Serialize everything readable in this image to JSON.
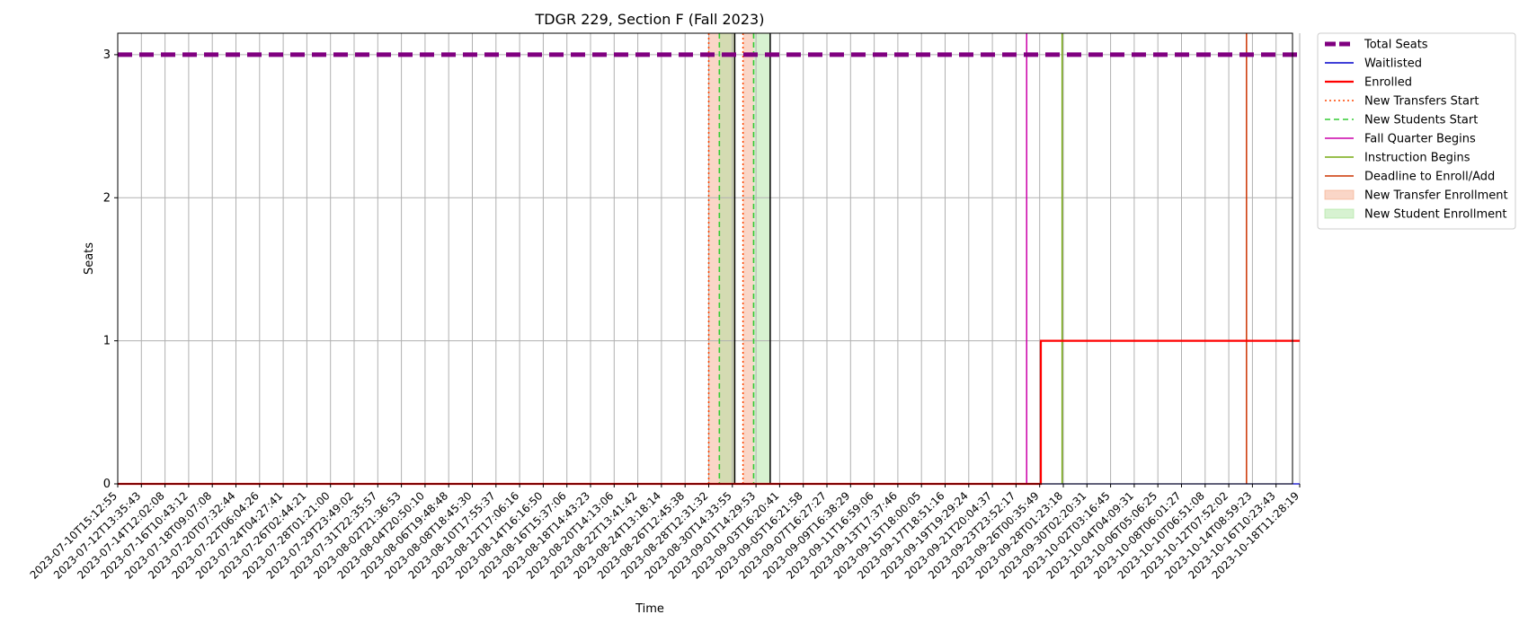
{
  "chart_data": {
    "type": "line",
    "title": "TDGR 229, Section F (Fall 2023)",
    "xlabel": "Time",
    "ylabel": "Seats",
    "ylim": [
      0,
      3.15
    ],
    "yticks": [
      0,
      1,
      2,
      3
    ],
    "grid": true,
    "legend_position": "outside-top-right",
    "x_ticks": [
      "2023-07-10T15:12:55",
      "2023-07-12T13:35:43",
      "2023-07-14T12:02:08",
      "2023-07-16T10:43:12",
      "2023-07-18T09:07:08",
      "2023-07-20T07:32:44",
      "2023-07-22T06:04:26",
      "2023-07-24T04:27:41",
      "2023-07-26T02:44:21",
      "2023-07-28T01:21:00",
      "2023-07-29T23:49:02",
      "2023-07-31T22:35:57",
      "2023-08-02T21:36:53",
      "2023-08-04T20:50:10",
      "2023-08-06T19:48:48",
      "2023-08-08T18:45:30",
      "2023-08-10T17:55:37",
      "2023-08-12T17:06:16",
      "2023-08-14T16:16:50",
      "2023-08-16T15:37:06",
      "2023-08-18T14:43:23",
      "2023-08-20T14:13:06",
      "2023-08-22T13:41:42",
      "2023-08-24T13:18:14",
      "2023-08-26T12:45:38",
      "2023-08-28T12:31:32",
      "2023-08-30T14:33:55",
      "2023-09-01T14:29:53",
      "2023-09-03T16:20:41",
      "2023-09-05T16:21:58",
      "2023-09-07T16:27:27",
      "2023-09-09T16:38:29",
      "2023-09-11T16:59:06",
      "2023-09-13T17:37:46",
      "2023-09-15T18:00:05",
      "2023-09-17T18:51:16",
      "2023-09-19T19:29:24",
      "2023-09-21T20:04:37",
      "2023-09-23T23:52:17",
      "2023-09-26T00:35:49",
      "2023-09-28T01:23:18",
      "2023-09-30T02:20:31",
      "2023-10-02T03:16:45",
      "2023-10-04T04:09:31",
      "2023-10-06T05:06:25",
      "2023-10-08T06:01:27",
      "2023-10-10T06:51:08",
      "2023-10-12T07:52:02",
      "2023-10-14T08:59:23",
      "2023-10-16T10:23:43",
      "2023-10-18T11:28:19"
    ],
    "series": [
      {
        "name": "Total Seats",
        "color": "#800080",
        "style": "dashed-thick",
        "points": [
          [
            0,
            3
          ],
          [
            50,
            3
          ]
        ]
      },
      {
        "name": "Waitlisted",
        "color": "#0000cc",
        "style": "solid-thin",
        "points": [
          [
            0,
            0
          ],
          [
            50,
            0
          ]
        ]
      },
      {
        "name": "Enrolled",
        "color": "#ff0000",
        "style": "solid-thick",
        "points": [
          [
            0,
            0
          ],
          [
            39.05,
            0
          ],
          [
            39.05,
            1
          ],
          [
            50,
            1
          ]
        ]
      }
    ],
    "events": [
      {
        "name": "New Transfers Start",
        "x_index": 25.0,
        "color": "#ff4500",
        "style": "dotted"
      },
      {
        "name": "New Transfers Start",
        "x_index": 26.45,
        "color": "#ff4500",
        "style": "dotted"
      },
      {
        "name": "New Students Start",
        "x_index": 25.45,
        "color": "#33cc33",
        "style": "dashed"
      },
      {
        "name": "New Students Start",
        "x_index": 26.9,
        "color": "#33cc33",
        "style": "dashed"
      },
      {
        "name": "Fall Quarter Begins",
        "x_index": 38.45,
        "color": "#cc00aa",
        "style": "solid"
      },
      {
        "name": "Instruction Begins",
        "x_index": 39.95,
        "color": "#77aa11",
        "style": "solid"
      },
      {
        "name": "Deadline to Enroll/Add",
        "x_index": 47.75,
        "color": "#cc3300",
        "style": "solid"
      }
    ],
    "bounds": [
      {
        "x_index": 26.1,
        "color": "#000000"
      },
      {
        "x_index": 27.6,
        "color": "#000000"
      }
    ],
    "spans": [
      {
        "name": "New Transfer Enrollment",
        "from": 25.0,
        "to": 26.1,
        "color": "#f4a582"
      },
      {
        "name": "New Transfer Enrollment",
        "from": 26.45,
        "to": 26.9,
        "color": "#f4a582"
      },
      {
        "name": "New Student Enrollment",
        "from": 25.45,
        "to": 26.1,
        "color": "#a6e39a"
      },
      {
        "name": "New Student Enrollment",
        "from": 26.9,
        "to": 27.6,
        "color": "#a6e39a"
      }
    ],
    "legend": [
      {
        "label": "Total Seats",
        "color": "#800080",
        "kind": "dashed-thick"
      },
      {
        "label": "Waitlisted",
        "color": "#0000cc",
        "kind": "line"
      },
      {
        "label": "Enrolled",
        "color": "#ff0000",
        "kind": "line-thick"
      },
      {
        "label": "New Transfers Start",
        "color": "#ff4500",
        "kind": "dotted"
      },
      {
        "label": "New Students Start",
        "color": "#33cc33",
        "kind": "dashed"
      },
      {
        "label": "Fall Quarter Begins",
        "color": "#cc00aa",
        "kind": "line"
      },
      {
        "label": "Instruction Begins",
        "color": "#77aa11",
        "kind": "line"
      },
      {
        "label": "Deadline to Enroll/Add",
        "color": "#cc3300",
        "kind": "line"
      },
      {
        "label": "New Transfer Enrollment",
        "color": "#f4a582",
        "kind": "patch"
      },
      {
        "label": "New Student Enrollment",
        "color": "#a6e39a",
        "kind": "patch"
      }
    ]
  }
}
